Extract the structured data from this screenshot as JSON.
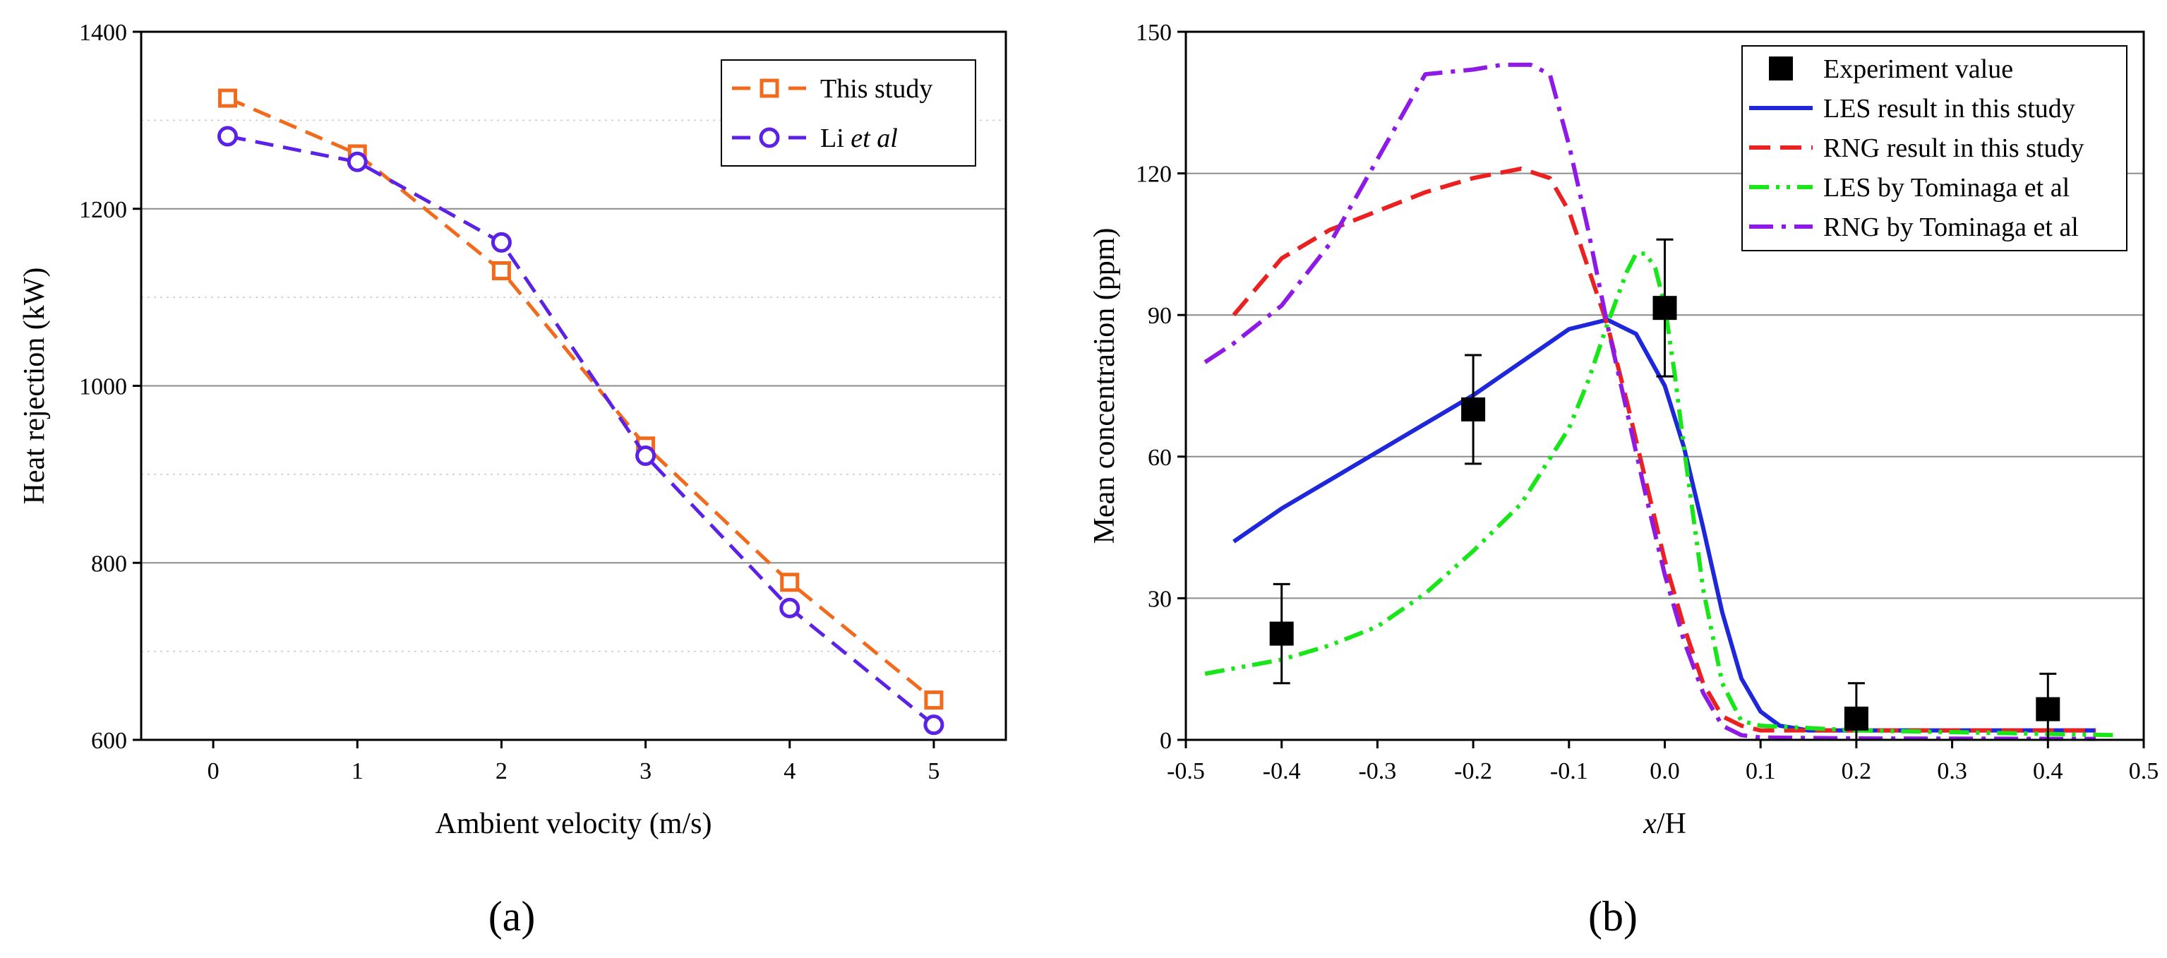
{
  "figure": {
    "panel_a_label": "(a)",
    "panel_b_label": "(b)"
  },
  "chart_data": [
    {
      "id": "a",
      "type": "line",
      "xlabel": "Ambient velocity (m/s)",
      "ylabel": "Heat rejection (kW)",
      "xlim": [
        -0.5,
        5.5
      ],
      "ylim": [
        600,
        1400
      ],
      "xticks": [
        "0",
        "1",
        "2",
        "3",
        "4",
        "5"
      ],
      "yticks": [
        "600",
        "800",
        "1000",
        "1200",
        "1400"
      ],
      "grid": "horizontal",
      "legend_position": "top-right",
      "series": [
        {
          "name": "This study",
          "color": "#F26B1D",
          "marker": "square",
          "x": [
            0.1,
            1,
            2,
            3,
            4,
            5
          ],
          "y": [
            1325,
            1262,
            1130,
            932,
            778,
            645
          ]
        },
        {
          "name": "Li et al",
          "name_plain": "Li",
          "name_italic": "et al",
          "color": "#5B22E6",
          "marker": "circle",
          "x": [
            0.1,
            1,
            2,
            3,
            4,
            5
          ],
          "y": [
            1282,
            1253,
            1162,
            921,
            749,
            617
          ]
        }
      ]
    },
    {
      "id": "b",
      "type": "line",
      "xlabel": "x/H",
      "xlabel_italic": "x",
      "xlabel_plain": "/H",
      "ylabel": "Mean concentration (ppm)",
      "xlim": [
        -0.5,
        0.5
      ],
      "ylim": [
        0,
        150
      ],
      "xticks": [
        "-0.5",
        "-0.4",
        "-0.3",
        "-0.2",
        "-0.1",
        "0.0",
        "0.1",
        "0.2",
        "0.3",
        "0.4",
        "0.5"
      ],
      "yticks": [
        "0",
        "30",
        "60",
        "90",
        "120",
        "150"
      ],
      "grid": "horizontal",
      "legend_position": "top-right",
      "experiment": {
        "name": "Experiment value",
        "x": [
          -0.4,
          -0.2,
          0.0,
          0.2,
          0.4
        ],
        "y": [
          22.5,
          70,
          91.5,
          4.5,
          6.5
        ],
        "err": [
          10.5,
          11.5,
          14.5,
          7.5,
          7.5
        ]
      },
      "series": [
        {
          "name": "LES result in this study",
          "color": "#1F27DA",
          "style": "solid",
          "x": [
            -0.45,
            -0.4,
            -0.35,
            -0.3,
            -0.25,
            -0.2,
            -0.15,
            -0.1,
            -0.06,
            -0.03,
            0.0,
            0.02,
            0.04,
            0.06,
            0.08,
            0.1,
            0.12,
            0.15,
            0.2,
            0.3,
            0.45
          ],
          "y": [
            42,
            49,
            55,
            61,
            67,
            73,
            80,
            87,
            89,
            86,
            75,
            62,
            45,
            27,
            13,
            6,
            3,
            2,
            2,
            2,
            2
          ]
        },
        {
          "name": "RNG result in this study",
          "color": "#EB2020",
          "style": "dashed",
          "x": [
            -0.45,
            -0.4,
            -0.35,
            -0.3,
            -0.25,
            -0.2,
            -0.15,
            -0.12,
            -0.1,
            -0.08,
            -0.06,
            -0.04,
            -0.02,
            0.0,
            0.02,
            0.04,
            0.06,
            0.08,
            0.1,
            0.2,
            0.45
          ],
          "y": [
            90,
            102,
            108,
            112,
            116,
            119,
            121,
            119,
            112,
            100,
            88,
            72,
            55,
            38,
            24,
            12,
            5,
            3,
            2,
            2,
            2
          ]
        },
        {
          "name": "LES by Tominaga et al",
          "color": "#19E619",
          "style": "dash-dot-dot",
          "x": [
            -0.48,
            -0.4,
            -0.35,
            -0.3,
            -0.25,
            -0.2,
            -0.15,
            -0.1,
            -0.08,
            -0.06,
            -0.04,
            -0.03,
            -0.02,
            -0.01,
            0.0,
            0.01,
            0.02,
            0.04,
            0.06,
            0.08,
            0.1,
            0.2,
            0.47
          ],
          "y": [
            14,
            17,
            20,
            24,
            31,
            40,
            50,
            66,
            76,
            88,
            99,
            103,
            103,
            100,
            92,
            78,
            62,
            32,
            12,
            4,
            3,
            2,
            1
          ]
        },
        {
          "name": "RNG by Tominaga et al",
          "color": "#8F1AE6",
          "style": "dash-dot",
          "x": [
            -0.48,
            -0.45,
            -0.4,
            -0.35,
            -0.3,
            -0.25,
            -0.2,
            -0.17,
            -0.14,
            -0.12,
            -0.1,
            -0.08,
            -0.06,
            -0.04,
            -0.02,
            0.0,
            0.02,
            0.04,
            0.06,
            0.08,
            0.1,
            0.2,
            0.45
          ],
          "y": [
            80,
            84,
            92,
            105,
            123,
            141,
            142,
            143,
            143,
            141,
            126,
            108,
            88,
            70,
            52,
            35,
            21,
            10,
            3,
            1,
            0.5,
            0.3,
            0.2
          ]
        }
      ]
    }
  ]
}
